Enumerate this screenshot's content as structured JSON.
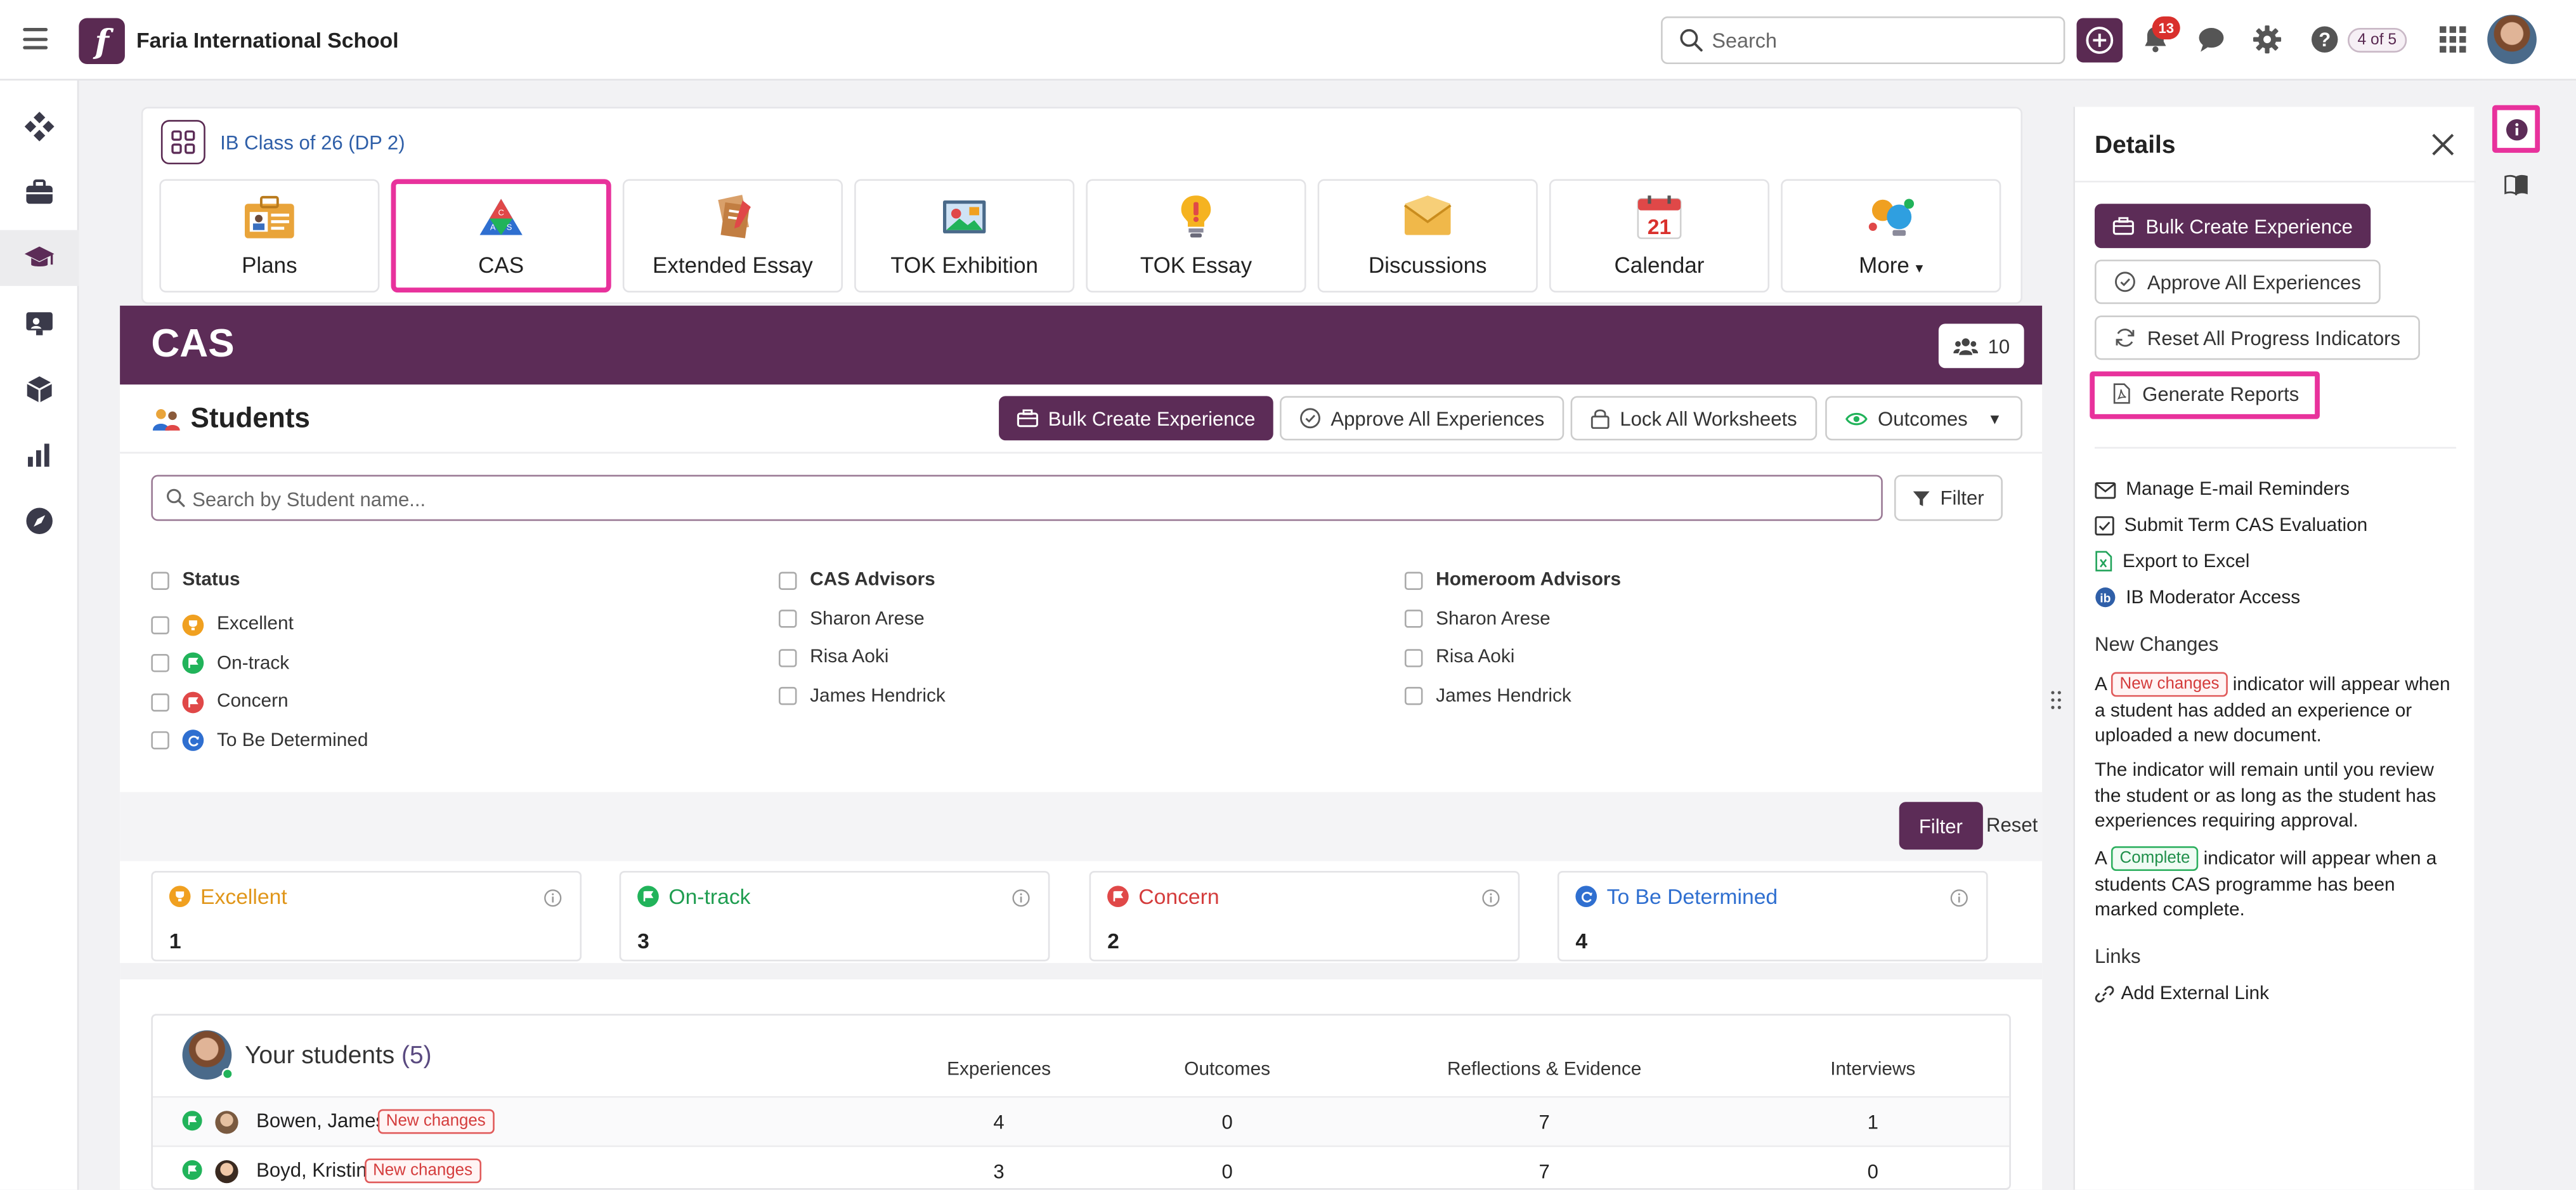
{
  "app": {
    "school_name": "Faria International School",
    "search_placeholder": "Search",
    "notification_count": "13",
    "page_indicator": "4 of 5",
    "brand_color": "#5c2c57",
    "highlight_color": "#e8329c"
  },
  "class": {
    "name": "IB Class of 26 (DP 2)"
  },
  "tabs": [
    {
      "label": "Plans",
      "icon": "plans-icon"
    },
    {
      "label": "CAS",
      "icon": "cas-icon",
      "selected": true
    },
    {
      "label": "Extended Essay",
      "icon": "extended-essay-icon"
    },
    {
      "label": "TOK Exhibition",
      "icon": "tok-exhibition-icon"
    },
    {
      "label": "TOK Essay",
      "icon": "tok-essay-icon"
    },
    {
      "label": "Discussions",
      "icon": "discussions-icon"
    },
    {
      "label": "Calendar",
      "icon": "calendar-icon",
      "calendar_day": "21"
    },
    {
      "label": "More",
      "icon": "more-icon"
    }
  ],
  "cas": {
    "title": "CAS",
    "member_count": "10",
    "students_heading": "Students",
    "buttons": {
      "bulk_create": "Bulk Create Experience",
      "approve_all": "Approve All Experiences",
      "lock_all": "Lock All Worksheets",
      "outcomes": "Outcomes"
    },
    "search_placeholder": "Search by Student name...",
    "filter_button": "Filter",
    "filters": {
      "status": {
        "header": "Status",
        "options": [
          "Excellent",
          "On-track",
          "Concern",
          "To Be Determined"
        ]
      },
      "cas_advisors": {
        "header": "CAS Advisors",
        "options": [
          "Sharon Arese",
          "Risa Aoki",
          "James Hendrick"
        ]
      },
      "homeroom_advisors": {
        "header": "Homeroom Advisors",
        "options": [
          "Sharon Arese",
          "Risa Aoki",
          "James Hendrick"
        ]
      }
    },
    "filter_apply": "Filter",
    "filter_reset": "Reset",
    "stats": [
      {
        "label": "Excellent",
        "value": "1",
        "color": "#f0a020"
      },
      {
        "label": "On-track",
        "value": "3",
        "color": "#21b35a"
      },
      {
        "label": "Concern",
        "value": "2",
        "color": "#e04848"
      },
      {
        "label": "To Be Determined",
        "value": "4",
        "color": "#2f6fd0"
      }
    ],
    "your_students": {
      "title": "Your students",
      "count": "(5)",
      "columns": [
        "Experiences",
        "Outcomes",
        "Reflections & Evidence",
        "Interviews"
      ],
      "rows": [
        {
          "name": "Bowen, James",
          "badge": "New changes",
          "status": "on-track",
          "values": [
            "4",
            "0",
            "7",
            "1"
          ]
        },
        {
          "name": "Boyd, Kristin",
          "badge": "New changes",
          "status": "on-track",
          "values": [
            "3",
            "0",
            "7",
            "0"
          ]
        }
      ]
    }
  },
  "details": {
    "title": "Details",
    "buttons": {
      "bulk_create": "Bulk Create Experience",
      "approve_all": "Approve All Experiences",
      "reset_progress": "Reset All Progress Indicators",
      "generate_reports": "Generate Reports"
    },
    "actions": [
      {
        "label": "Manage E-mail Reminders",
        "icon": "envelope-icon"
      },
      {
        "label": "Submit Term CAS Evaluation",
        "icon": "checkbox-icon"
      },
      {
        "label": "Export to Excel",
        "icon": "excel-icon"
      },
      {
        "label": "IB Moderator Access",
        "icon": "ib-icon"
      }
    ],
    "new_changes": {
      "heading": "New Changes",
      "p1_a": "A",
      "p1_badge": "New changes",
      "p1_b": "indicator will appear when a student has added an experience or uploaded a new document.",
      "p2": "The indicator will remain until you review the student or as long as the student has experiences requiring approval.",
      "p3_a": "A",
      "p3_badge": "Complete",
      "p3_b": "indicator will appear when a students CAS programme has been marked complete."
    },
    "links": {
      "heading": "Links",
      "add_external": "Add External Link"
    }
  }
}
